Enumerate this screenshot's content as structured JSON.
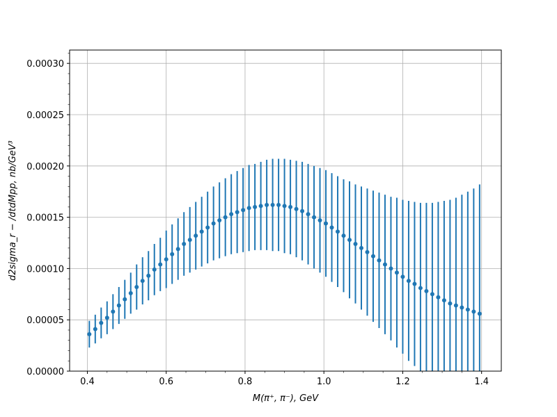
{
  "chart_data": {
    "type": "scatter",
    "title": "",
    "xlabel": "M(π⁺, π⁻), GeV",
    "ylabel": "d2sigma_r − /dtdMpp, nb/GeV³",
    "xlim": [
      0.355,
      1.45
    ],
    "ylim": [
      0.0,
      0.000313
    ],
    "grid": true,
    "xticks": [
      0.4,
      0.6,
      0.8,
      1.0,
      1.2,
      1.4
    ],
    "xtick_labels": [
      "0.4",
      "0.6",
      "0.8",
      "1.0",
      "1.2",
      "1.4"
    ],
    "yticks": [
      0.0,
      5e-05,
      0.0001,
      0.00015,
      0.0002,
      0.00025,
      0.0003
    ],
    "ytick_labels": [
      "0.00000",
      "0.00005",
      "0.00010",
      "0.00015",
      "0.00020",
      "0.00025",
      "0.00030"
    ],
    "marker_color": "#1f77b4",
    "series": [
      {
        "x": [
          0.405,
          0.42,
          0.435,
          0.45,
          0.465,
          0.48,
          0.495,
          0.51,
          0.525,
          0.54,
          0.555,
          0.57,
          0.585,
          0.6,
          0.615,
          0.63,
          0.645,
          0.66,
          0.675,
          0.69,
          0.705,
          0.72,
          0.735,
          0.75,
          0.765,
          0.78,
          0.795,
          0.81,
          0.825,
          0.84,
          0.855,
          0.87,
          0.885,
          0.9,
          0.915,
          0.93,
          0.945,
          0.96,
          0.975,
          0.99,
          1.005,
          1.02,
          1.035,
          1.05,
          1.065,
          1.08,
          1.095,
          1.11,
          1.125,
          1.14,
          1.155,
          1.17,
          1.185,
          1.2,
          1.215,
          1.23,
          1.245,
          1.26,
          1.275,
          1.29,
          1.305,
          1.32,
          1.335,
          1.35,
          1.365,
          1.38,
          1.395
        ],
        "y": [
          3.6e-05,
          4.1e-05,
          4.7e-05,
          5.2e-05,
          5.8e-05,
          6.4e-05,
          7e-05,
          7.6e-05,
          8.2e-05,
          8.8e-05,
          9.3e-05,
          9.9e-05,
          0.000104,
          0.000109,
          0.000114,
          0.000119,
          0.000124,
          0.000128,
          0.000132,
          0.000136,
          0.00014,
          0.000144,
          0.000147,
          0.00015,
          0.000153,
          0.000155,
          0.000157,
          0.000159,
          0.00016,
          0.000161,
          0.000162,
          0.000162,
          0.000162,
          0.000161,
          0.00016,
          0.000158,
          0.000156,
          0.000153,
          0.00015,
          0.000147,
          0.000144,
          0.00014,
          0.000136,
          0.000132,
          0.000128,
          0.000124,
          0.00012,
          0.000116,
          0.000112,
          0.000108,
          0.000104,
          0.0001,
          9.6e-05,
          9.2e-05,
          8.8e-05,
          8.5e-05,
          8.1e-05,
          7.8e-05,
          7.5e-05,
          7.2e-05,
          6.9e-05,
          6.6e-05,
          6.4e-05,
          6.2e-05,
          6e-05,
          5.8e-05,
          5.6e-05
        ],
        "yerr": [
          1.3e-05,
          1.4e-05,
          1.5e-05,
          1.6e-05,
          1.7e-05,
          1.8e-05,
          1.9e-05,
          2e-05,
          2.2e-05,
          2.3e-05,
          2.4e-05,
          2.5e-05,
          2.6e-05,
          2.8e-05,
          2.9e-05,
          3e-05,
          3.1e-05,
          3.2e-05,
          3.3e-05,
          3.4e-05,
          3.5e-05,
          3.6e-05,
          3.7e-05,
          3.8e-05,
          3.9e-05,
          4e-05,
          4.1e-05,
          4.2e-05,
          4.2e-05,
          4.3e-05,
          4.4e-05,
          4.5e-05,
          4.5e-05,
          4.6e-05,
          4.6e-05,
          4.7e-05,
          4.8e-05,
          4.9e-05,
          5e-05,
          5.1e-05,
          5.2e-05,
          5.3e-05,
          5.4e-05,
          5.5e-05,
          5.7e-05,
          5.8e-05,
          6e-05,
          6.2e-05,
          6.4e-05,
          6.6e-05,
          6.8e-05,
          7e-05,
          7.3e-05,
          7.5e-05,
          7.8e-05,
          8e-05,
          8.3e-05,
          8.6e-05,
          8.9e-05,
          9.3e-05,
          9.7e-05,
          0.000101,
          0.000105,
          0.00011,
          0.000115,
          0.00012,
          0.000126
        ]
      }
    ]
  }
}
